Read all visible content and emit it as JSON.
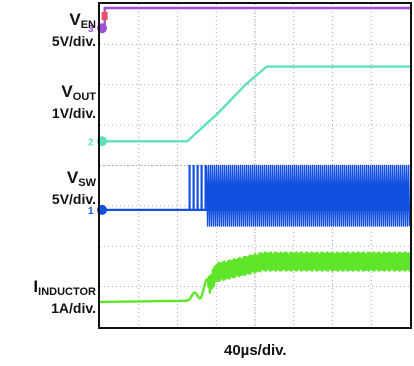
{
  "chart_data": {
    "type": "line",
    "title": "",
    "timebase": "40µs/div.",
    "grid": true,
    "divisions": {
      "x": 8,
      "y": 8
    },
    "background": "#ffffff",
    "series": [
      {
        "id": "ven",
        "name_main": "V",
        "name_sub": "EN",
        "scale": "5V/div.",
        "channel": "3",
        "color": "#a14ed6",
        "x": [
          0,
          0.12,
          0.12,
          8
        ],
        "y": [
          7.4,
          7.4,
          7.9,
          7.9
        ]
      },
      {
        "id": "vout",
        "name_main": "V",
        "name_sub": "OUT",
        "scale": "1V/div.",
        "channel": "2",
        "color": "#5fe0bf",
        "x": [
          0,
          2.25,
          3.05,
          3.75,
          4.3,
          8
        ],
        "y": [
          4.6,
          4.6,
          5.3,
          6.0,
          6.45,
          6.45
        ]
      },
      {
        "id": "vsw",
        "name_main": "V",
        "name_sub": "SW",
        "scale": "5V/div.",
        "channel": "1",
        "color": "#1450e0",
        "x": [
          0,
          2.25,
          2.35,
          8
        ],
        "y": [
          2.9,
          2.9,
          2.9,
          2.9
        ],
        "switching": {
          "start": 2.3,
          "dense_start": 2.75,
          "low": 2.5,
          "high": 4.0
        }
      },
      {
        "id": "iind",
        "name_main": "I",
        "name_sub": "INDUCTOR",
        "scale": "1A/div.",
        "channel": "",
        "color": "#5fe52a",
        "x": [
          0,
          2.2,
          2.5,
          2.8,
          3.0,
          4.2,
          8
        ],
        "y": [
          0.62,
          0.65,
          0.8,
          1.0,
          1.35,
          1.62,
          1.62
        ],
        "ripple": {
          "start": 2.2,
          "amplitude": 0.45
        }
      }
    ]
  }
}
